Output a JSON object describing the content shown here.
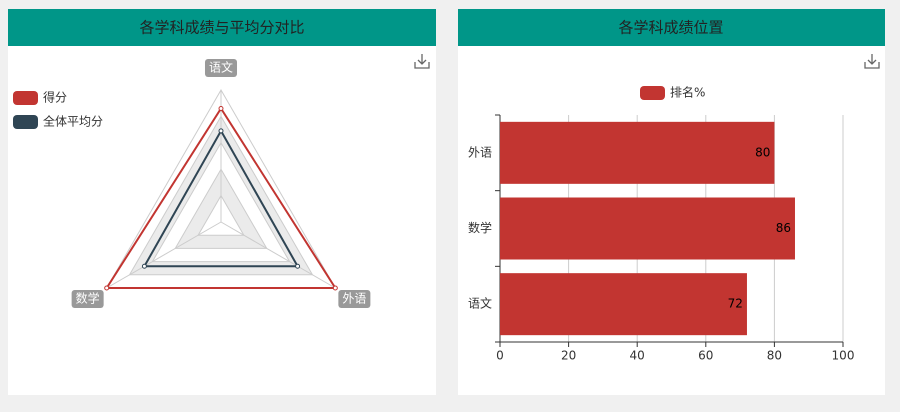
{
  "chart_data": [
    {
      "type": "radar",
      "title": "各学科成绩与平均分对比",
      "indicators": [
        "语文",
        "外语",
        "数学"
      ],
      "rlim": [
        0,
        100
      ],
      "series": [
        {
          "name": "得分",
          "color": "#c23531",
          "values": [
            86,
            100,
            100
          ]
        },
        {
          "name": "全体平均分",
          "color": "#2f4554",
          "values": [
            69,
            67,
            67
          ]
        }
      ]
    },
    {
      "type": "bar",
      "title": "各学科成绩位置",
      "orientation": "horizontal",
      "categories": [
        "语文",
        "数学",
        "外语"
      ],
      "series": [
        {
          "name": "排名%",
          "color": "#c23531",
          "values": [
            72,
            86,
            80
          ]
        }
      ],
      "xlim": [
        0,
        100
      ],
      "xticks": [
        0,
        20,
        40,
        60,
        80,
        100
      ],
      "grid": true
    }
  ]
}
